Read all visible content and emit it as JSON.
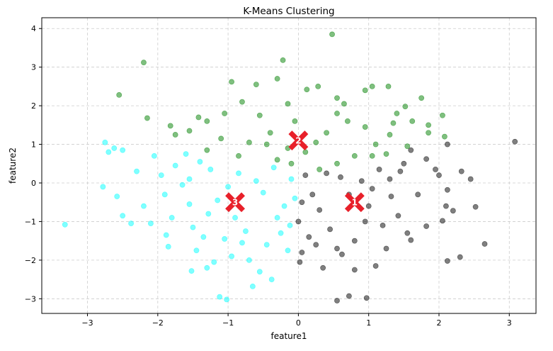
{
  "chart_data": {
    "type": "scatter",
    "title": "K-Means Clustering",
    "xlabel": "feature1",
    "ylabel": "feature2",
    "xlim": [
      -3.65,
      3.38
    ],
    "ylim": [
      -3.38,
      4.28
    ],
    "xticks": [
      -3,
      -2,
      -1,
      0,
      1,
      2,
      3
    ],
    "xtick_labels": [
      "−3",
      "−2",
      "−1",
      "0",
      "1",
      "2",
      "3"
    ],
    "yticks": [
      -3,
      -2,
      -1,
      0,
      1,
      2,
      3,
      4
    ],
    "ytick_labels": [
      "−3",
      "−2",
      "−1",
      "0",
      "1",
      "2",
      "3",
      "4"
    ],
    "grid": true,
    "legend": "none",
    "clusters": [
      {
        "label": "1",
        "color": "#000000",
        "centroid": {
          "x": 0.8,
          "y": -0.5
        },
        "points": [
          {
            "x": 3.08,
            "y": 1.07
          },
          {
            "x": 2.65,
            "y": -1.58
          },
          {
            "x": 2.3,
            "y": -1.92
          },
          {
            "x": 2.12,
            "y": -2.02
          },
          {
            "x": 2.12,
            "y": 1.0
          },
          {
            "x": 1.6,
            "y": 0.85
          },
          {
            "x": 1.82,
            "y": 0.62
          },
          {
            "x": 1.5,
            "y": 0.5
          },
          {
            "x": 1.95,
            "y": 0.35
          },
          {
            "x": 2.0,
            "y": 0.2
          },
          {
            "x": 2.12,
            "y": -0.18
          },
          {
            "x": 2.32,
            "y": 0.3
          },
          {
            "x": 2.45,
            "y": 0.1
          },
          {
            "x": 2.52,
            "y": -0.62
          },
          {
            "x": 2.1,
            "y": -0.6
          },
          {
            "x": 2.2,
            "y": -0.72
          },
          {
            "x": 2.05,
            "y": -0.98
          },
          {
            "x": 1.82,
            "y": -1.12
          },
          {
            "x": 1.55,
            "y": -1.3
          },
          {
            "x": 1.6,
            "y": -1.48
          },
          {
            "x": 1.42,
            "y": -0.85
          },
          {
            "x": 1.32,
            "y": -0.35
          },
          {
            "x": 1.3,
            "y": 0.1
          },
          {
            "x": 1.15,
            "y": 0.35
          },
          {
            "x": 1.05,
            "y": -0.15
          },
          {
            "x": 1.0,
            "y": -0.6
          },
          {
            "x": 0.95,
            "y": -1.0
          },
          {
            "x": 0.8,
            "y": -1.5
          },
          {
            "x": 0.62,
            "y": -1.85
          },
          {
            "x": 0.8,
            "y": -2.25
          },
          {
            "x": 0.55,
            "y": -1.7
          },
          {
            "x": 0.45,
            "y": -1.2
          },
          {
            "x": 0.3,
            "y": -0.7
          },
          {
            "x": 0.2,
            "y": -0.3
          },
          {
            "x": 0.1,
            "y": 0.2
          },
          {
            "x": 0.15,
            "y": -1.4
          },
          {
            "x": 0.05,
            "y": -1.8
          },
          {
            "x": 0.02,
            "y": -2.05
          },
          {
            "x": 0.35,
            "y": -2.2
          },
          {
            "x": 0.55,
            "y": -3.05
          },
          {
            "x": 0.72,
            "y": -2.93
          },
          {
            "x": 0.97,
            "y": -2.98
          },
          {
            "x": 1.1,
            "y": -2.15
          },
          {
            "x": 1.25,
            "y": -1.7
          },
          {
            "x": 0.6,
            "y": 0.15
          },
          {
            "x": 0.72,
            "y": -0.3
          },
          {
            "x": 0.9,
            "y": 0.05
          },
          {
            "x": 1.2,
            "y": -1.1
          },
          {
            "x": 0.4,
            "y": 0.25
          },
          {
            "x": 0.05,
            "y": -0.5
          },
          {
            "x": 0.0,
            "y": -1.0
          },
          {
            "x": 0.25,
            "y": -1.6
          },
          {
            "x": 1.7,
            "y": -0.3
          },
          {
            "x": 1.45,
            "y": 0.3
          }
        ]
      },
      {
        "label": "2",
        "color": "#008000",
        "centroid": {
          "x": 0.0,
          "y": 1.1
        },
        "points": [
          {
            "x": 0.48,
            "y": 3.85
          },
          {
            "x": -0.22,
            "y": 3.18
          },
          {
            "x": -2.2,
            "y": 3.12
          },
          {
            "x": -2.55,
            "y": 2.28
          },
          {
            "x": -2.15,
            "y": 1.68
          },
          {
            "x": -1.82,
            "y": 1.48
          },
          {
            "x": -1.75,
            "y": 1.25
          },
          {
            "x": -1.55,
            "y": 1.35
          },
          {
            "x": -1.42,
            "y": 1.7
          },
          {
            "x": -1.3,
            "y": 1.6
          },
          {
            "x": -1.05,
            "y": 1.8
          },
          {
            "x": -0.95,
            "y": 2.62
          },
          {
            "x": -0.6,
            "y": 2.55
          },
          {
            "x": -0.3,
            "y": 2.7
          },
          {
            "x": 0.12,
            "y": 2.42
          },
          {
            "x": 0.28,
            "y": 2.5
          },
          {
            "x": 0.55,
            "y": 2.2
          },
          {
            "x": 0.95,
            "y": 2.4
          },
          {
            "x": 1.05,
            "y": 2.5
          },
          {
            "x": 1.28,
            "y": 2.5
          },
          {
            "x": 1.35,
            "y": 1.55
          },
          {
            "x": 1.52,
            "y": 1.98
          },
          {
            "x": 1.62,
            "y": 1.6
          },
          {
            "x": 1.75,
            "y": 2.2
          },
          {
            "x": 1.85,
            "y": 1.5
          },
          {
            "x": 1.85,
            "y": 1.3
          },
          {
            "x": 2.05,
            "y": 1.75
          },
          {
            "x": 2.08,
            "y": 1.2
          },
          {
            "x": 1.55,
            "y": 0.95
          },
          {
            "x": 1.3,
            "y": 1.25
          },
          {
            "x": 1.1,
            "y": 1.0
          },
          {
            "x": 0.95,
            "y": 1.45
          },
          {
            "x": 0.7,
            "y": 1.6
          },
          {
            "x": 0.55,
            "y": 1.8
          },
          {
            "x": 0.4,
            "y": 1.3
          },
          {
            "x": 0.25,
            "y": 1.05
          },
          {
            "x": -0.05,
            "y": 1.6
          },
          {
            "x": -0.15,
            "y": 2.05
          },
          {
            "x": -0.4,
            "y": 1.3
          },
          {
            "x": -0.55,
            "y": 1.75
          },
          {
            "x": -0.7,
            "y": 1.05
          },
          {
            "x": -0.85,
            "y": 0.7
          },
          {
            "x": -1.1,
            "y": 1.15
          },
          {
            "x": -1.3,
            "y": 0.85
          },
          {
            "x": -0.3,
            "y": 0.6
          },
          {
            "x": -0.1,
            "y": 0.5
          },
          {
            "x": 0.3,
            "y": 0.35
          },
          {
            "x": 0.55,
            "y": 0.5
          },
          {
            "x": 0.8,
            "y": 0.7
          },
          {
            "x": 1.05,
            "y": 0.7
          },
          {
            "x": 1.25,
            "y": 0.75
          },
          {
            "x": -0.15,
            "y": 0.9
          },
          {
            "x": 0.1,
            "y": 0.8
          },
          {
            "x": -0.45,
            "y": 1.0
          },
          {
            "x": 0.65,
            "y": 2.05
          },
          {
            "x": -0.8,
            "y": 2.1
          },
          {
            "x": 1.4,
            "y": 1.8
          }
        ]
      },
      {
        "label": "3",
        "color": "#00ffff",
        "centroid": {
          "x": -0.9,
          "y": -0.5
        },
        "points": [
          {
            "x": -3.32,
            "y": -1.08
          },
          {
            "x": -2.75,
            "y": 1.05
          },
          {
            "x": -2.7,
            "y": 0.8
          },
          {
            "x": -2.62,
            "y": 0.9
          },
          {
            "x": -2.5,
            "y": 0.85
          },
          {
            "x": -2.78,
            "y": -0.1
          },
          {
            "x": -2.58,
            "y": -0.35
          },
          {
            "x": -2.5,
            "y": -0.85
          },
          {
            "x": -2.38,
            "y": -1.05
          },
          {
            "x": -2.2,
            "y": -0.6
          },
          {
            "x": -2.1,
            "y": -1.05
          },
          {
            "x": -2.05,
            "y": 0.7
          },
          {
            "x": -1.95,
            "y": 0.2
          },
          {
            "x": -1.9,
            "y": -0.3
          },
          {
            "x": -1.88,
            "y": -1.35
          },
          {
            "x": -1.85,
            "y": -1.65
          },
          {
            "x": -1.75,
            "y": 0.45
          },
          {
            "x": -1.6,
            "y": 0.75
          },
          {
            "x": -1.55,
            "y": 0.1
          },
          {
            "x": -1.55,
            "y": -0.55
          },
          {
            "x": -1.5,
            "y": -1.15
          },
          {
            "x": -1.45,
            "y": -1.75
          },
          {
            "x": -1.52,
            "y": -2.28
          },
          {
            "x": -1.35,
            "y": -1.4
          },
          {
            "x": -1.28,
            "y": -0.8
          },
          {
            "x": -1.25,
            "y": 0.35
          },
          {
            "x": -1.2,
            "y": -2.05
          },
          {
            "x": -1.12,
            "y": -2.95
          },
          {
            "x": -1.02,
            "y": -3.02
          },
          {
            "x": -1.05,
            "y": -1.45
          },
          {
            "x": -0.95,
            "y": -1.9
          },
          {
            "x": -0.85,
            "y": 0.25
          },
          {
            "x": -0.75,
            "y": -1.25
          },
          {
            "x": -0.7,
            "y": -2.0
          },
          {
            "x": -0.65,
            "y": -2.68
          },
          {
            "x": -0.55,
            "y": -2.3
          },
          {
            "x": -0.5,
            "y": -0.25
          },
          {
            "x": -0.45,
            "y": -1.6
          },
          {
            "x": -0.38,
            "y": -2.5
          },
          {
            "x": -0.35,
            "y": 0.4
          },
          {
            "x": -0.3,
            "y": -0.9
          },
          {
            "x": -0.25,
            "y": -1.3
          },
          {
            "x": -0.2,
            "y": -0.6
          },
          {
            "x": -0.15,
            "y": -1.75
          },
          {
            "x": -0.1,
            "y": 0.1
          },
          {
            "x": -0.12,
            "y": -1.1
          },
          {
            "x": -0.05,
            "y": -0.4
          },
          {
            "x": -1.65,
            "y": -0.05
          },
          {
            "x": -1.0,
            "y": -0.1
          },
          {
            "x": -1.4,
            "y": 0.55
          },
          {
            "x": -0.6,
            "y": 0.05
          },
          {
            "x": -1.15,
            "y": -0.45
          },
          {
            "x": -2.3,
            "y": 0.3
          },
          {
            "x": -1.8,
            "y": -0.9
          },
          {
            "x": -0.9,
            "y": -0.9
          },
          {
            "x": -1.3,
            "y": -2.2
          },
          {
            "x": -0.8,
            "y": -1.55
          }
        ]
      }
    ]
  }
}
